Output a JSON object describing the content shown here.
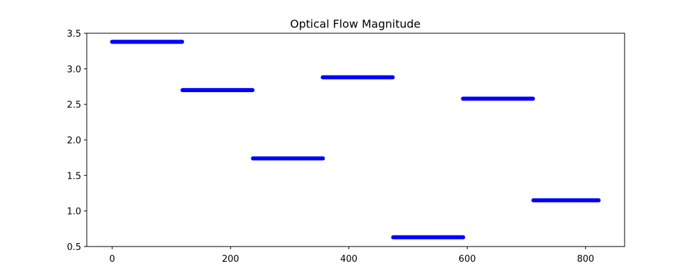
{
  "chart_data": {
    "type": "scatter",
    "title": "Optical Flow Magnitude",
    "xlabel": "",
    "ylabel": "",
    "xlim": [
      -43,
      866
    ],
    "ylim": [
      0.5,
      3.5
    ],
    "x_ticks": [
      0,
      200,
      400,
      600,
      800
    ],
    "y_ticks": [
      0.5,
      1.0,
      1.5,
      2.0,
      2.5,
      3.0,
      3.5
    ],
    "y_tick_labels": [
      "0.5",
      "1.0",
      "1.5",
      "2.0",
      "2.5",
      "3.0",
      "3.5"
    ],
    "x_tick_labels": [
      "0",
      "200",
      "400",
      "600",
      "800"
    ],
    "grid": false,
    "marker_color": "#0000ff",
    "point_step": 2,
    "segments": [
      {
        "x_start": 0,
        "x_end": 119,
        "y": 3.38
      },
      {
        "x_start": 119,
        "x_end": 238,
        "y": 2.7
      },
      {
        "x_start": 238,
        "x_end": 356,
        "y": 1.74
      },
      {
        "x_start": 356,
        "x_end": 475,
        "y": 2.88
      },
      {
        "x_start": 475,
        "x_end": 593,
        "y": 0.63
      },
      {
        "x_start": 593,
        "x_end": 712,
        "y": 2.58
      },
      {
        "x_start": 712,
        "x_end": 822,
        "y": 1.15
      }
    ]
  }
}
